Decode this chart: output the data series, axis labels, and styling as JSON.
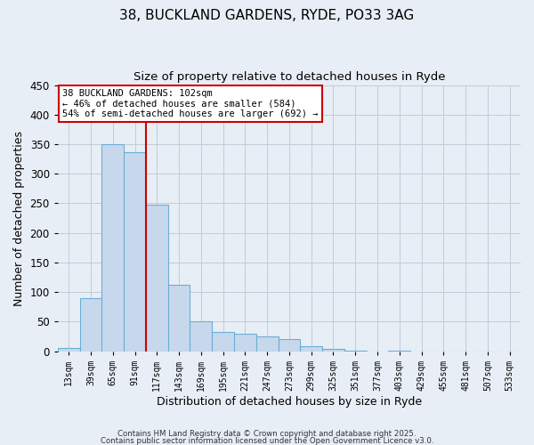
{
  "title1": "38, BUCKLAND GARDENS, RYDE, PO33 3AG",
  "title2": "Size of property relative to detached houses in Ryde",
  "xlabel": "Distribution of detached houses by size in Ryde",
  "ylabel": "Number of detached properties",
  "categories": [
    "13sqm",
    "39sqm",
    "65sqm",
    "91sqm",
    "117sqm",
    "143sqm",
    "169sqm",
    "195sqm",
    "221sqm",
    "247sqm",
    "273sqm",
    "299sqm",
    "325sqm",
    "351sqm",
    "377sqm",
    "403sqm",
    "429sqm",
    "455sqm",
    "481sqm",
    "507sqm",
    "533sqm"
  ],
  "values": [
    6,
    90,
    350,
    336,
    248,
    113,
    50,
    32,
    30,
    25,
    20,
    9,
    4,
    1,
    0,
    1,
    0,
    0,
    0,
    0,
    0
  ],
  "bar_color": "#c8d8ec",
  "bar_edge_color": "#6baed6",
  "vline_x": 3.5,
  "vline_color": "#cc0000",
  "annotation_text": "38 BUCKLAND GARDENS: 102sqm\n← 46% of detached houses are smaller (584)\n54% of semi-detached houses are larger (692) →",
  "annotation_box_color": "#ffffff",
  "annotation_box_edge": "#cc0000",
  "ylim": [
    0,
    450
  ],
  "yticks": [
    0,
    50,
    100,
    150,
    200,
    250,
    300,
    350,
    400,
    450
  ],
  "footer1": "Contains HM Land Registry data © Crown copyright and database right 2025.",
  "footer2": "Contains public sector information licensed under the Open Government Licence v3.0.",
  "bg_color": "#e8eef5",
  "plot_bg_color": "#e8eef5",
  "grid_color": "#c0ccd8"
}
